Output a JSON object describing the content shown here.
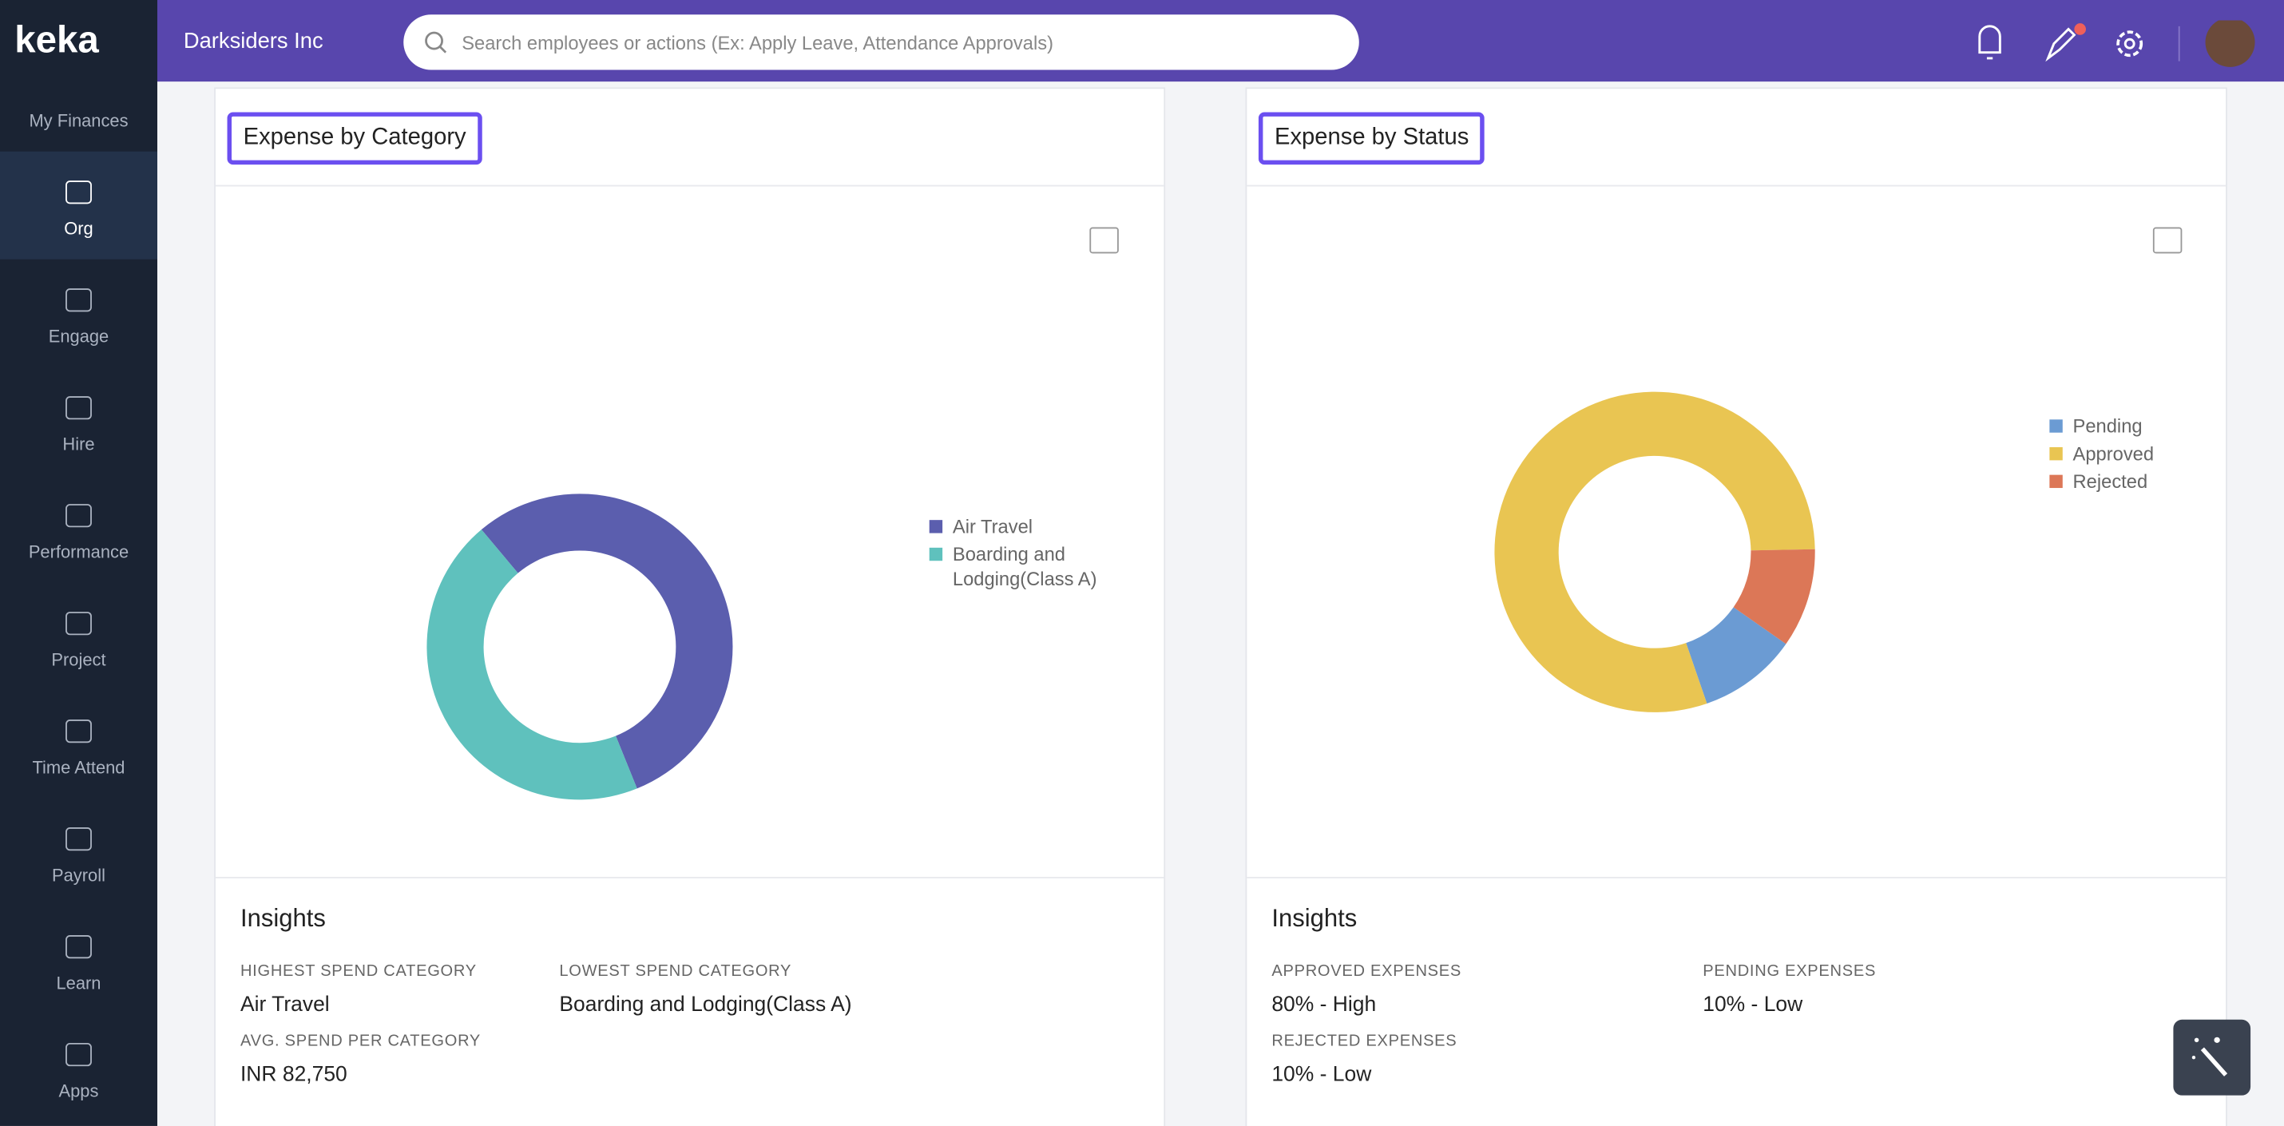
{
  "header": {
    "logo": "keka",
    "company": "Darksiders Inc",
    "search_placeholder": "Search employees or actions (Ex: Apply Leave, Attendance Approvals)"
  },
  "sidebar": {
    "items": [
      "My Finances",
      "Org",
      "Engage",
      "Hire",
      "Performance",
      "Project",
      "Time Attend",
      "Payroll",
      "Learn",
      "Apps"
    ],
    "active": 1
  },
  "panels": [
    {
      "title": "Expense by Category",
      "chart": {
        "type": "donut",
        "categories": [
          "Air Travel",
          "Boarding and Lodging(Class A)"
        ],
        "values": [
          55,
          45
        ],
        "colors": [
          "#5b5eae",
          "#5fc1bd"
        ]
      },
      "insights": {
        "title": "Insights",
        "items": [
          {
            "label": "HIGHEST SPEND CATEGORY",
            "value": "Air Travel"
          },
          {
            "label": "LOWEST SPEND CATEGORY",
            "value": "Boarding and Lodging(Class A)"
          },
          {
            "label": "AVG. SPEND PER CATEGORY",
            "value": "INR 82,750"
          }
        ]
      }
    },
    {
      "title": "Expense by Status",
      "chart": {
        "type": "donut",
        "categories": [
          "Pending",
          "Approved",
          "Rejected"
        ],
        "values": [
          10,
          80,
          10
        ],
        "colors": [
          "#6b9bd3",
          "#e9c552",
          "#dc7757"
        ]
      },
      "insights": {
        "title": "Insights",
        "items": [
          {
            "label": "APPROVED EXPENSES",
            "value": "80% - High"
          },
          {
            "label": "PENDING EXPENSES",
            "value": "10% - Low"
          },
          {
            "label": "REJECTED EXPENSES",
            "value": "10% - Low"
          }
        ]
      }
    }
  ]
}
